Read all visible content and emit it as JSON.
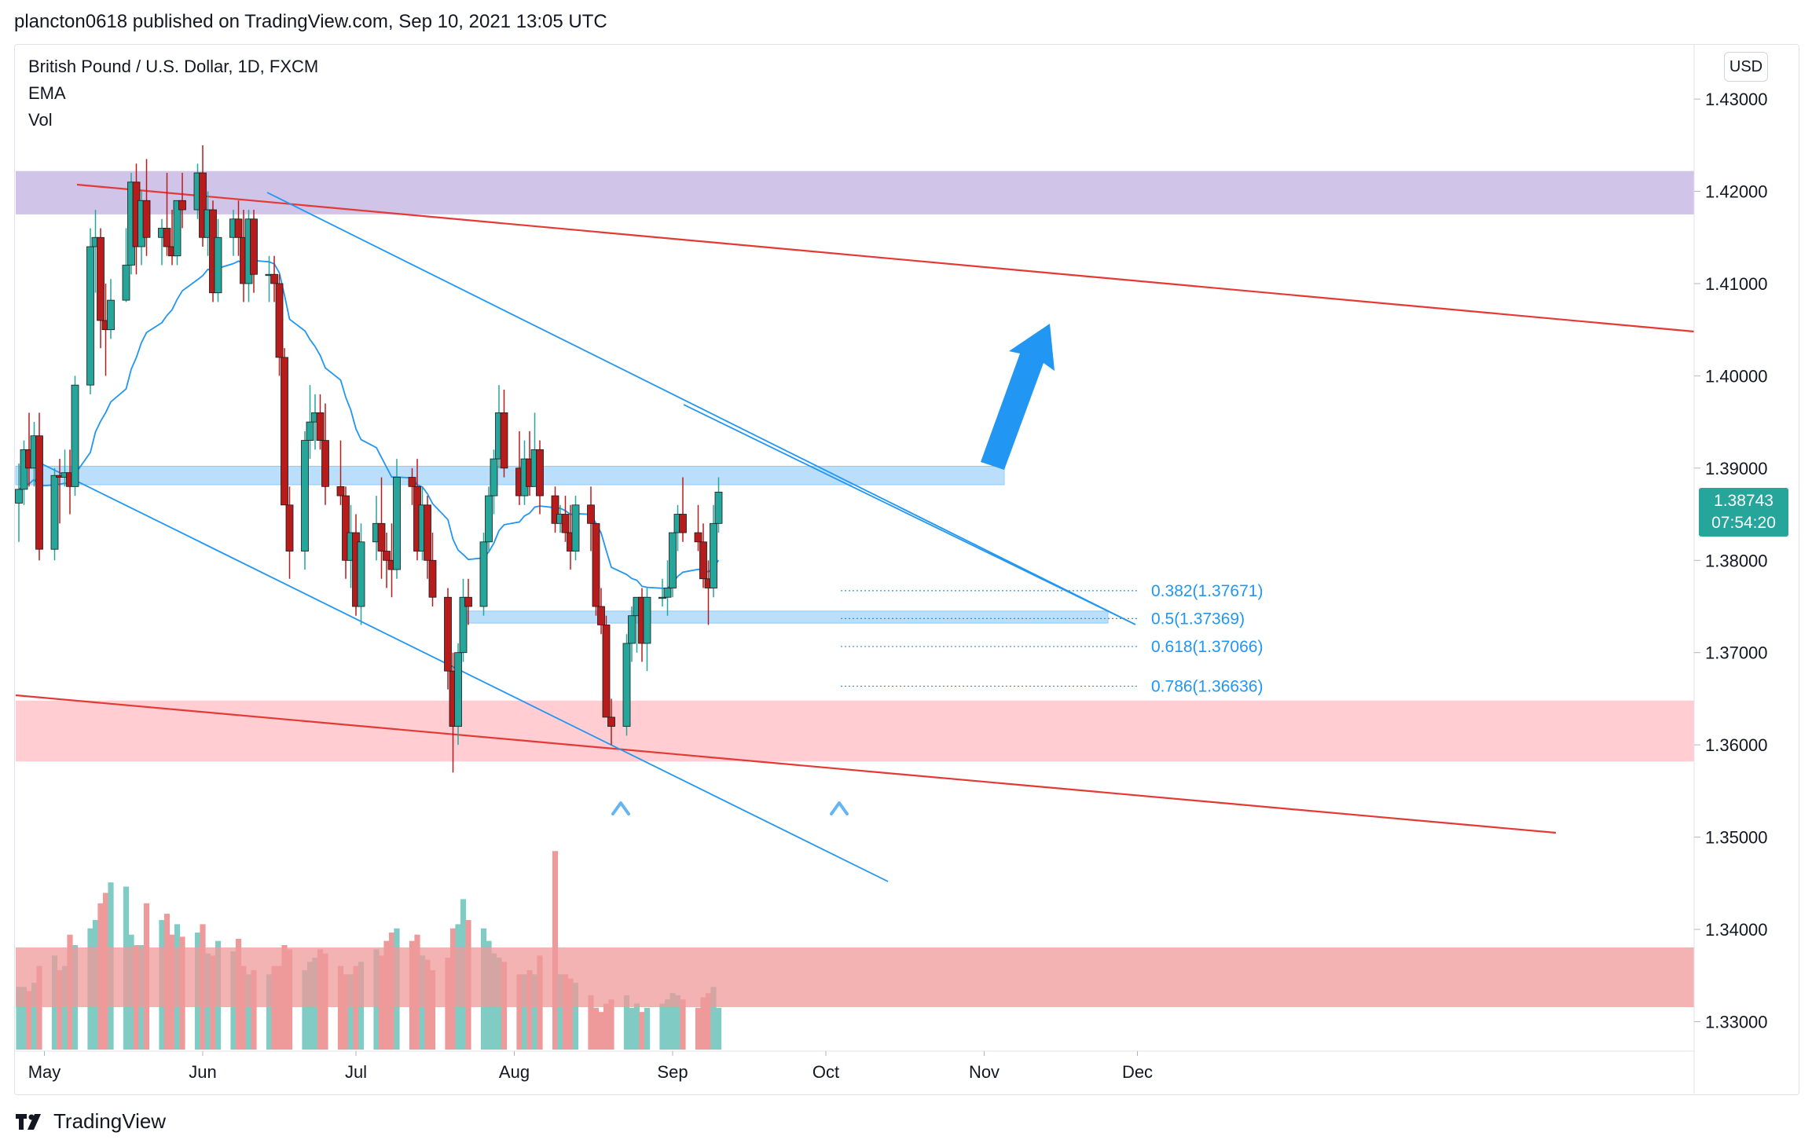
{
  "header": {
    "text": "plancton0618 published on TradingView.com, Sep 10, 2021 13:05 UTC"
  },
  "legend": {
    "symbol": "British Pound / U.S. Dollar, 1D, FXCM",
    "indicator_1": "EMA",
    "indicator_2": "Vol"
  },
  "currency": "USD",
  "last_price": {
    "value": "1.38743",
    "countdown": "07:54:20"
  },
  "footer": {
    "brand": "TradingView"
  },
  "colors": {
    "up": "#26a69a",
    "down": "#b71c1c",
    "ema": "#2196f3",
    "trendline": "#e53935",
    "channel": "#2196f3",
    "resistance_zone": "#d1c4e9",
    "support_zone": "#ffcdd2",
    "level_zone": "#bbdefb"
  },
  "chart_data": {
    "type": "candlestick",
    "x_axis_labels": [
      "May",
      "Jun",
      "Jul",
      "Aug",
      "Sep",
      "Oct",
      "Nov",
      "Dec"
    ],
    "y_axis_labels": [
      "1.43000",
      "1.42000",
      "1.41000",
      "1.40000",
      "1.39000",
      "1.38000",
      "1.37000",
      "1.36000",
      "1.35000",
      "1.34000",
      "1.33000"
    ],
    "ylim": [
      1.3268,
      1.4358
    ],
    "grid": false,
    "candles": [
      [
        "2021-04-26",
        1.3862,
        1.3905,
        1.382,
        1.3877
      ],
      [
        "2021-04-27",
        1.3877,
        1.393,
        1.386,
        1.392
      ],
      [
        "2021-04-28",
        1.392,
        1.396,
        1.388,
        1.39
      ],
      [
        "2021-04-29",
        1.39,
        1.395,
        1.388,
        1.3935
      ],
      [
        "2021-04-30",
        1.3935,
        1.396,
        1.38,
        1.3812
      ],
      [
        "2021-05-03",
        1.3812,
        1.39,
        1.38,
        1.3892
      ],
      [
        "2021-05-04",
        1.3892,
        1.391,
        1.384,
        1.389
      ],
      [
        "2021-05-05",
        1.389,
        1.392,
        1.388,
        1.3895
      ],
      [
        "2021-05-06",
        1.3895,
        1.392,
        1.385,
        1.388
      ],
      [
        "2021-05-07",
        1.388,
        1.4,
        1.387,
        1.399
      ],
      [
        "2021-05-10",
        1.399,
        1.416,
        1.398,
        1.414
      ],
      [
        "2021-05-11",
        1.414,
        1.418,
        1.409,
        1.415
      ],
      [
        "2021-05-12",
        1.415,
        1.416,
        1.403,
        1.406
      ],
      [
        "2021-05-13",
        1.406,
        1.41,
        1.4,
        1.405
      ],
      [
        "2021-05-14",
        1.405,
        1.4105,
        1.404,
        1.4082
      ],
      [
        "2021-05-17",
        1.4082,
        1.416,
        1.408,
        1.412
      ],
      [
        "2021-05-18",
        1.412,
        1.422,
        1.411,
        1.421
      ],
      [
        "2021-05-19",
        1.421,
        1.423,
        1.411,
        1.414
      ],
      [
        "2021-05-20",
        1.414,
        1.42,
        1.412,
        1.419
      ],
      [
        "2021-05-21",
        1.419,
        1.4235,
        1.413,
        1.415
      ],
      [
        "2021-05-24",
        1.415,
        1.417,
        1.412,
        1.416
      ],
      [
        "2021-05-25",
        1.416,
        1.422,
        1.413,
        1.414
      ],
      [
        "2021-05-26",
        1.414,
        1.418,
        1.412,
        1.413
      ],
      [
        "2021-05-27",
        1.413,
        1.419,
        1.412,
        1.419
      ],
      [
        "2021-05-28",
        1.419,
        1.422,
        1.416,
        1.418
      ],
      [
        "2021-05-31",
        1.418,
        1.423,
        1.417,
        1.422
      ],
      [
        "2021-06-01",
        1.422,
        1.425,
        1.414,
        1.415
      ],
      [
        "2021-06-02",
        1.415,
        1.42,
        1.413,
        1.418
      ],
      [
        "2021-06-03",
        1.418,
        1.419,
        1.408,
        1.409
      ],
      [
        "2021-06-04",
        1.409,
        1.417,
        1.408,
        1.415
      ],
      [
        "2021-06-07",
        1.415,
        1.418,
        1.413,
        1.417
      ],
      [
        "2021-06-08",
        1.417,
        1.419,
        1.413,
        1.415
      ],
      [
        "2021-06-09",
        1.415,
        1.418,
        1.408,
        1.41
      ],
      [
        "2021-06-10",
        1.41,
        1.418,
        1.408,
        1.417
      ],
      [
        "2021-06-11",
        1.417,
        1.418,
        1.409,
        1.411
      ],
      [
        "2021-06-14",
        1.411,
        1.413,
        1.408,
        1.411
      ],
      [
        "2021-06-15",
        1.411,
        1.413,
        1.408,
        1.41
      ],
      [
        "2021-06-16",
        1.41,
        1.411,
        1.4,
        1.402
      ],
      [
        "2021-06-17",
        1.402,
        1.403,
        1.386,
        1.386
      ],
      [
        "2021-06-18",
        1.386,
        1.388,
        1.378,
        1.381
      ],
      [
        "2021-06-21",
        1.381,
        1.394,
        1.379,
        1.393
      ],
      [
        "2021-06-22",
        1.393,
        1.399,
        1.391,
        1.395
      ],
      [
        "2021-06-23",
        1.395,
        1.398,
        1.392,
        1.396
      ],
      [
        "2021-06-24",
        1.396,
        1.398,
        1.392,
        1.393
      ],
      [
        "2021-06-25",
        1.393,
        1.397,
        1.386,
        1.388
      ],
      [
        "2021-06-28",
        1.388,
        1.393,
        1.386,
        1.387
      ],
      [
        "2021-06-29",
        1.387,
        1.388,
        1.378,
        1.38
      ],
      [
        "2021-06-30",
        1.38,
        1.386,
        1.377,
        1.383
      ],
      [
        "2021-07-01",
        1.383,
        1.385,
        1.374,
        1.375
      ],
      [
        "2021-07-02",
        1.375,
        1.384,
        1.373,
        1.382
      ],
      [
        "2021-07-05",
        1.382,
        1.387,
        1.38,
        1.384
      ],
      [
        "2021-07-06",
        1.384,
        1.389,
        1.378,
        1.381
      ],
      [
        "2021-07-07",
        1.381,
        1.383,
        1.377,
        1.38
      ],
      [
        "2021-07-08",
        1.38,
        1.384,
        1.376,
        1.379
      ],
      [
        "2021-07-09",
        1.379,
        1.391,
        1.378,
        1.389
      ],
      [
        "2021-07-12",
        1.389,
        1.39,
        1.386,
        1.388
      ],
      [
        "2021-07-13",
        1.388,
        1.391,
        1.38,
        1.381
      ],
      [
        "2021-07-14",
        1.381,
        1.388,
        1.38,
        1.386
      ],
      [
        "2021-07-15",
        1.386,
        1.387,
        1.378,
        1.38
      ],
      [
        "2021-07-16",
        1.38,
        1.383,
        1.375,
        1.376
      ],
      [
        "2021-07-19",
        1.376,
        1.377,
        1.366,
        1.368
      ],
      [
        "2021-07-20",
        1.368,
        1.37,
        1.357,
        1.362
      ],
      [
        "2021-07-21",
        1.362,
        1.371,
        1.36,
        1.37
      ],
      [
        "2021-07-22",
        1.37,
        1.378,
        1.369,
        1.376
      ],
      [
        "2021-07-23",
        1.376,
        1.378,
        1.373,
        1.375
      ],
      [
        "2021-07-26",
        1.375,
        1.383,
        1.374,
        1.382
      ],
      [
        "2021-07-27",
        1.382,
        1.388,
        1.381,
        1.387
      ],
      [
        "2021-07-28",
        1.387,
        1.392,
        1.385,
        1.391
      ],
      [
        "2021-07-29",
        1.391,
        1.399,
        1.39,
        1.396
      ],
      [
        "2021-07-30",
        1.396,
        1.3985,
        1.389,
        1.39
      ],
      [
        "2021-08-02",
        1.39,
        1.394,
        1.386,
        1.387
      ],
      [
        "2021-08-03",
        1.387,
        1.393,
        1.386,
        1.391
      ],
      [
        "2021-08-04",
        1.391,
        1.394,
        1.387,
        1.388
      ],
      [
        "2021-08-05",
        1.388,
        1.396,
        1.388,
        1.392
      ],
      [
        "2021-08-06",
        1.392,
        1.393,
        1.385,
        1.387
      ],
      [
        "2021-08-09",
        1.387,
        1.388,
        1.383,
        1.384
      ],
      [
        "2021-08-10",
        1.384,
        1.386,
        1.383,
        1.385
      ],
      [
        "2021-08-11",
        1.385,
        1.387,
        1.382,
        1.383
      ],
      [
        "2021-08-12",
        1.383,
        1.386,
        1.379,
        1.381
      ],
      [
        "2021-08-13",
        1.381,
        1.387,
        1.38,
        1.386
      ],
      [
        "2021-08-16",
        1.386,
        1.388,
        1.381,
        1.384
      ],
      [
        "2021-08-17",
        1.384,
        1.384,
        1.374,
        1.375
      ],
      [
        "2021-08-18",
        1.375,
        1.377,
        1.372,
        1.373
      ],
      [
        "2021-08-19",
        1.373,
        1.374,
        1.363,
        1.363
      ],
      [
        "2021-08-20",
        1.363,
        1.365,
        1.36,
        1.362
      ],
      [
        "2021-08-23",
        1.362,
        1.372,
        1.361,
        1.371
      ],
      [
        "2021-08-24",
        1.371,
        1.375,
        1.369,
        1.374
      ],
      [
        "2021-08-25",
        1.374,
        1.376,
        1.37,
        1.376
      ],
      [
        "2021-08-26",
        1.376,
        1.377,
        1.369,
        1.371
      ],
      [
        "2021-08-27",
        1.371,
        1.377,
        1.368,
        1.376
      ],
      [
        "2021-08-30",
        1.376,
        1.378,
        1.375,
        1.376
      ],
      [
        "2021-08-31",
        1.376,
        1.38,
        1.374,
        1.377
      ],
      [
        "2021-09-01",
        1.377,
        1.383,
        1.376,
        1.383
      ],
      [
        "2021-09-02",
        1.383,
        1.386,
        1.381,
        1.385
      ],
      [
        "2021-09-03",
        1.385,
        1.389,
        1.382,
        1.383
      ],
      [
        "2021-09-06",
        1.383,
        1.386,
        1.381,
        1.382
      ],
      [
        "2021-09-07",
        1.382,
        1.384,
        1.377,
        1.378
      ],
      [
        "2021-09-08",
        1.378,
        1.38,
        1.373,
        1.377
      ],
      [
        "2021-09-09",
        1.377,
        1.386,
        1.376,
        1.384
      ],
      [
        "2021-09-10",
        1.384,
        1.389,
        1.383,
        1.3874
      ]
    ],
    "volume_relative": [
      0.3,
      0.3,
      0.28,
      0.32,
      0.4,
      0.45,
      0.38,
      0.4,
      0.55,
      0.5,
      0.58,
      0.62,
      0.7,
      0.75,
      0.8,
      0.78,
      0.55,
      0.5,
      0.5,
      0.7,
      0.62,
      0.65,
      0.55,
      0.6,
      0.54,
      0.56,
      0.6,
      0.46,
      0.45,
      0.52,
      0.47,
      0.53,
      0.4,
      0.36,
      0.38,
      0.36,
      0.4,
      0.4,
      0.5,
      0.48,
      0.38,
      0.42,
      0.44,
      0.48,
      0.46,
      0.4,
      0.36,
      0.36,
      0.4,
      0.42,
      0.48,
      0.45,
      0.52,
      0.56,
      0.58,
      0.52,
      0.55,
      0.45,
      0.43,
      0.38,
      0.44,
      0.58,
      0.6,
      0.72,
      0.62,
      0.58,
      0.52,
      0.46,
      0.44,
      0.42,
      0.36,
      0.36,
      0.38,
      0.36,
      0.45,
      0.95,
      0.36,
      0.36,
      0.34,
      0.32,
      0.26,
      0.2,
      0.18,
      0.22,
      0.24,
      0.26,
      0.2,
      0.22,
      0.18,
      0.2,
      0.22,
      0.24,
      0.27,
      0.26,
      0.24,
      0.2,
      0.25,
      0.27,
      0.3,
      0.2
    ],
    "annotations": {
      "fib_levels": [
        {
          "label": "0.382(1.37671)",
          "price": 1.37671
        },
        {
          "label": "0.5(1.37369)",
          "price": 1.37369
        },
        {
          "label": "0.618(1.37066)",
          "price": 1.37066
        },
        {
          "label": "0.786(1.36636)",
          "price": 1.36636
        }
      ],
      "zones": [
        {
          "name": "resistance",
          "from": 1.4175,
          "to": 1.4222
        },
        {
          "name": "level-1.389",
          "from": 1.3882,
          "to": 1.3902
        },
        {
          "name": "level-1.374",
          "from": 1.3732,
          "to": 1.3745
        },
        {
          "name": "support",
          "from": 1.3582,
          "to": 1.3648
        }
      ]
    }
  }
}
